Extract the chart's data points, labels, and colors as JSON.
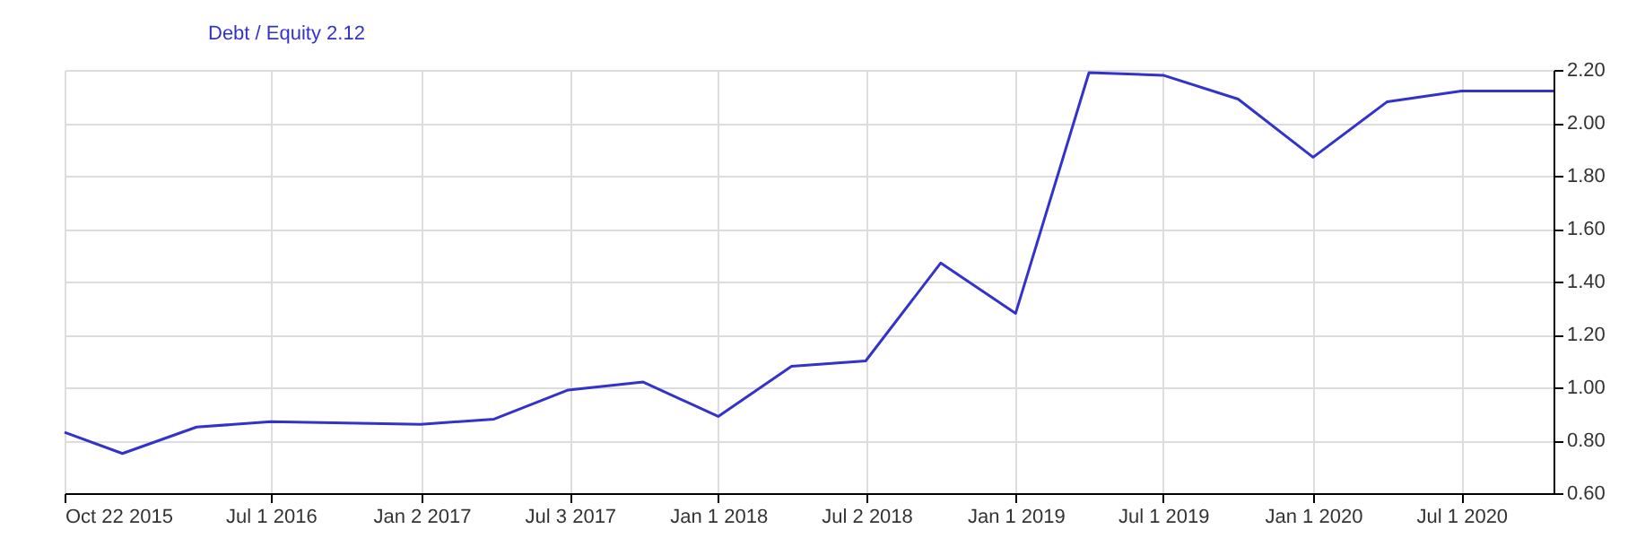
{
  "chart_data": {
    "type": "line",
    "x": [
      "2015-10-22",
      "2016-01-01",
      "2016-04-01",
      "2016-07-01",
      "2017-01-01",
      "2017-04-01",
      "2017-07-01",
      "2017-10-01",
      "2018-01-01",
      "2018-04-01",
      "2018-07-01",
      "2018-10-01",
      "2019-01-01",
      "2019-04-01",
      "2019-07-01",
      "2019-10-01",
      "2020-01-01",
      "2020-04-01",
      "2020-07-01",
      "2020-10-22"
    ],
    "series": [
      {
        "name": "Debt / Equity 2.12",
        "color": "#3333cc",
        "values": [
          0.83,
          0.75,
          0.85,
          0.87,
          0.86,
          0.88,
          0.99,
          1.02,
          0.89,
          1.08,
          1.1,
          1.47,
          1.28,
          2.19,
          2.18,
          2.09,
          1.87,
          2.08,
          2.12,
          2.12
        ]
      }
    ],
    "xlim": [
      "2015-10-22",
      "2020-10-22"
    ],
    "xticks": [
      {
        "value": "2015-10-22",
        "label": "Oct 22 2015"
      },
      {
        "value": "2016-07-01",
        "label": "Jul 1 2016"
      },
      {
        "value": "2017-01-02",
        "label": "Jan 2 2017"
      },
      {
        "value": "2017-07-03",
        "label": "Jul 3 2017"
      },
      {
        "value": "2018-01-01",
        "label": "Jan 1 2018"
      },
      {
        "value": "2018-07-02",
        "label": "Jul 2 2018"
      },
      {
        "value": "2019-01-01",
        "label": "Jan 1 2019"
      },
      {
        "value": "2019-07-01",
        "label": "Jul 1 2019"
      },
      {
        "value": "2020-01-01",
        "label": "Jan 1 2020"
      },
      {
        "value": "2020-07-01",
        "label": "Jul 1 2020"
      }
    ],
    "ylim": [
      0.6,
      2.2
    ],
    "yticks": [
      {
        "value": 0.6,
        "label": "0.60"
      },
      {
        "value": 0.8,
        "label": "0.80"
      },
      {
        "value": 1.0,
        "label": "1.00"
      },
      {
        "value": 1.2,
        "label": "1.20"
      },
      {
        "value": 1.4,
        "label": "1.40"
      },
      {
        "value": 1.6,
        "label": "1.60"
      },
      {
        "value": 1.8,
        "label": "1.80"
      },
      {
        "value": 2.0,
        "label": "2.00"
      },
      {
        "value": 2.2,
        "label": "2.20"
      }
    ],
    "grid": true,
    "legend": "top left",
    "marker": "none",
    "line_style": "solid"
  }
}
